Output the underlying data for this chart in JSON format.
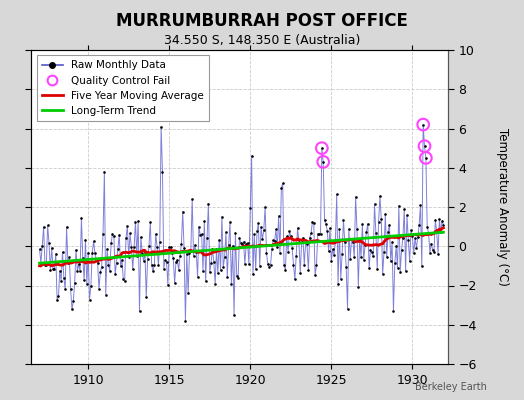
{
  "title": "MURRUMBURRAH POST OFFICE",
  "subtitle": "34.550 S, 148.350 E (Australia)",
  "ylabel": "Temperature Anomaly (°C)",
  "ylim": [
    -6,
    10
  ],
  "xlim": [
    1906.5,
    1932.2
  ],
  "yticks": [
    -6,
    -4,
    -2,
    0,
    2,
    4,
    6,
    8,
    10
  ],
  "xticks": [
    1910,
    1915,
    1920,
    1925,
    1930
  ],
  "fig_bg_color": "#d8d8d8",
  "plot_bg_color": "#ffffff",
  "grid_color": "#cccccc",
  "raw_color": "#5555cc",
  "raw_alpha": 0.75,
  "dot_color": "#000000",
  "ma_color": "#dd0000",
  "trend_color": "#00cc00",
  "qc_color": "#ff44ff",
  "watermark": "Berkeley Earth",
  "seed": 42
}
